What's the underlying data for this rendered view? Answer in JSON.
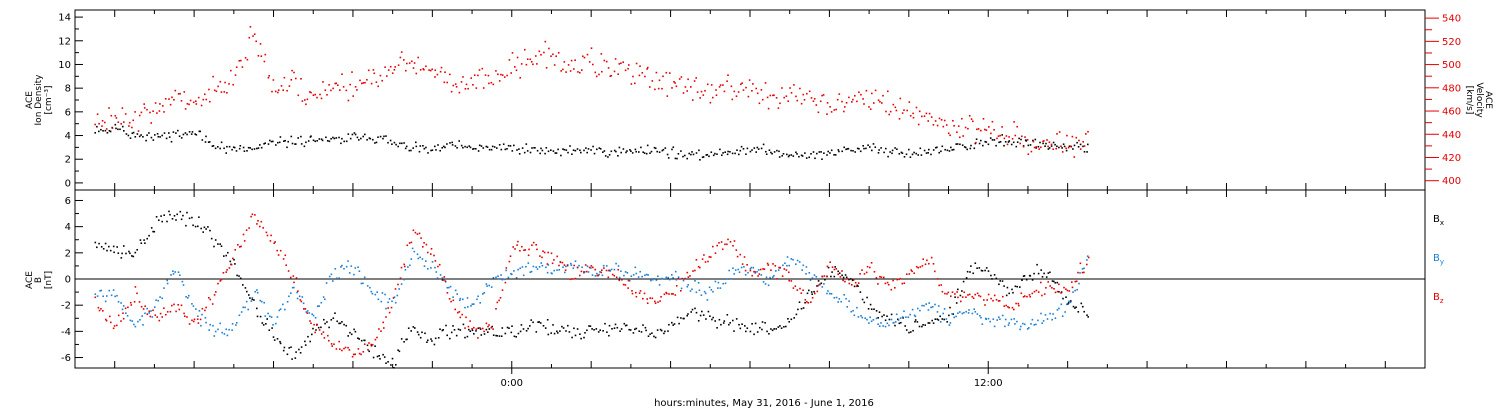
{
  "footer_label": "hours:minutes, May 31, 2016 - June  1, 2016",
  "colors": {
    "black": "#000000",
    "red": "#e60000",
    "blue": "#1a7fd6"
  },
  "chart_data": [
    {
      "type": "scatter",
      "panel": "top",
      "ylabel_lines": [
        "ACE",
        "Ion Density",
        "[cm⁻³]"
      ],
      "y2label_lines": [
        "ACE",
        "Velocity",
        "[km/s]"
      ],
      "ylim": [
        -0.6,
        14.6
      ],
      "y_ticks": [
        0,
        2,
        4,
        6,
        8,
        10,
        12,
        14
      ],
      "y2lim": [
        392,
        547
      ],
      "y2_ticks": [
        400,
        420,
        440,
        460,
        480,
        500,
        520,
        540
      ],
      "series": [
        {
          "axis": "left",
          "color": "#000000",
          "points": [
            [
              -10.5,
              4.5
            ],
            [
              -10.0,
              4.6
            ],
            [
              -9.5,
              4.2
            ],
            [
              -9.0,
              3.9
            ],
            [
              -8.5,
              4.1
            ],
            [
              -8.0,
              4.2
            ],
            [
              -7.5,
              3.3
            ],
            [
              -7.0,
              2.8
            ],
            [
              -6.5,
              2.9
            ],
            [
              -6.0,
              3.4
            ],
            [
              -5.5,
              3.6
            ],
            [
              -5.0,
              3.7
            ],
            [
              -4.5,
              3.6
            ],
            [
              -4.0,
              4.0
            ],
            [
              -3.5,
              3.9
            ],
            [
              -3.0,
              3.4
            ],
            [
              -2.5,
              3.0
            ],
            [
              -2.0,
              2.8
            ],
            [
              -1.5,
              3.2
            ],
            [
              -1.0,
              3.0
            ],
            [
              -0.5,
              2.9
            ],
            [
              0.0,
              3.0
            ],
            [
              0.5,
              2.8
            ],
            [
              1.0,
              2.7
            ],
            [
              1.5,
              2.8
            ],
            [
              2.0,
              2.9
            ],
            [
              2.5,
              2.6
            ],
            [
              3.0,
              2.7
            ],
            [
              3.5,
              2.9
            ],
            [
              4.0,
              2.6
            ],
            [
              4.5,
              2.3
            ],
            [
              5.0,
              2.5
            ],
            [
              5.5,
              2.8
            ],
            [
              6.0,
              3.0
            ],
            [
              6.5,
              2.7
            ],
            [
              7.0,
              2.5
            ],
            [
              7.5,
              2.4
            ],
            [
              8.0,
              2.6
            ],
            [
              8.5,
              2.9
            ],
            [
              9.0,
              3.0
            ],
            [
              9.5,
              2.8
            ],
            [
              10.0,
              2.6
            ],
            [
              10.5,
              2.7
            ],
            [
              11.0,
              2.9
            ],
            [
              11.5,
              3.2
            ],
            [
              12.0,
              3.6
            ],
            [
              12.5,
              3.6
            ],
            [
              13.0,
              3.4
            ],
            [
              13.5,
              3.1
            ],
            [
              14.0,
              3.0
            ],
            [
              14.5,
              2.9
            ]
          ]
        },
        {
          "axis": "right",
          "color": "#e60000",
          "points": [
            [
              -10.5,
              450
            ],
            [
              -10.0,
              455
            ],
            [
              -9.5,
              455
            ],
            [
              -9.0,
              462
            ],
            [
              -8.5,
              470
            ],
            [
              -8.0,
              470
            ],
            [
              -7.5,
              478
            ],
            [
              -7.0,
              495
            ],
            [
              -6.5,
              528
            ],
            [
              -6.0,
              480
            ],
            [
              -5.5,
              485
            ],
            [
              -5.0,
              472
            ],
            [
              -4.5,
              481
            ],
            [
              -4.0,
              483
            ],
            [
              -3.5,
              490
            ],
            [
              -3.0,
              498
            ],
            [
              -2.5,
              504
            ],
            [
              -2.0,
              496
            ],
            [
              -1.5,
              480
            ],
            [
              -1.0,
              485
            ],
            [
              -0.5,
              490
            ],
            [
              0.0,
              498
            ],
            [
              0.5,
              505
            ],
            [
              1.0,
              510
            ],
            [
              1.5,
              500
            ],
            [
              2.0,
              505
            ],
            [
              2.5,
              495
            ],
            [
              3.0,
              492
            ],
            [
              3.5,
              488
            ],
            [
              4.0,
              485
            ],
            [
              4.5,
              480
            ],
            [
              5.0,
              478
            ],
            [
              5.5,
              482
            ],
            [
              6.0,
              478
            ],
            [
              6.5,
              472
            ],
            [
              7.0,
              475
            ],
            [
              7.5,
              470
            ],
            [
              8.0,
              466
            ],
            [
              8.5,
              468
            ],
            [
              9.0,
              474
            ],
            [
              9.5,
              465
            ],
            [
              10.0,
              460
            ],
            [
              10.5,
              455
            ],
            [
              11.0,
              450
            ],
            [
              11.5,
              448
            ],
            [
              12.0,
              445
            ],
            [
              12.5,
              440
            ],
            [
              13.0,
              435
            ],
            [
              13.5,
              432
            ],
            [
              14.0,
              430
            ],
            [
              14.5,
              435
            ]
          ]
        }
      ]
    },
    {
      "type": "scatter",
      "panel": "bottom",
      "ylabel_lines": [
        "ACE",
        "B",
        "[nT]"
      ],
      "ylim": [
        -6.8,
        6.8
      ],
      "y_ticks": [
        -6,
        -4,
        -2,
        0,
        2,
        4,
        6
      ],
      "legend": [
        {
          "label": "Bx",
          "color": "#000000"
        },
        {
          "label": "By",
          "color": "#1a7fd6"
        },
        {
          "label": "Bz",
          "color": "#e60000"
        }
      ],
      "series": [
        {
          "name": "Bx",
          "color": "#000000",
          "points": [
            [
              -10.5,
              3.0
            ],
            [
              -10.0,
              2.2
            ],
            [
              -9.5,
              2.0
            ],
            [
              -9.0,
              4.2
            ],
            [
              -8.5,
              5.0
            ],
            [
              -8.0,
              4.6
            ],
            [
              -7.5,
              3.0
            ],
            [
              -7.0,
              1.0
            ],
            [
              -6.5,
              -2.0
            ],
            [
              -6.0,
              -4.5
            ],
            [
              -5.5,
              -5.8
            ],
            [
              -5.0,
              -4.0
            ],
            [
              -4.5,
              -3.0
            ],
            [
              -4.0,
              -4.2
            ],
            [
              -3.5,
              -5.5
            ],
            [
              -3.0,
              -6.2
            ],
            [
              -2.5,
              -3.5
            ],
            [
              -2.0,
              -4.5
            ],
            [
              -1.5,
              -3.8
            ],
            [
              -1.0,
              -3.9
            ],
            [
              -0.5,
              -4.2
            ],
            [
              0.0,
              -4.1
            ],
            [
              0.5,
              -3.6
            ],
            [
              1.0,
              -3.7
            ],
            [
              1.5,
              -4.0
            ],
            [
              2.0,
              -4.0
            ],
            [
              2.5,
              -3.8
            ],
            [
              3.0,
              -3.7
            ],
            [
              3.5,
              -4.0
            ],
            [
              4.0,
              -3.8
            ],
            [
              4.5,
              -2.5
            ],
            [
              5.0,
              -3.0
            ],
            [
              5.5,
              -3.2
            ],
            [
              6.0,
              -3.5
            ],
            [
              6.5,
              -3.6
            ],
            [
              7.0,
              -3.4
            ],
            [
              7.5,
              -1.0
            ],
            [
              8.0,
              0.8
            ],
            [
              8.5,
              0.2
            ],
            [
              9.0,
              -2.0
            ],
            [
              9.5,
              -3.0
            ],
            [
              10.0,
              -3.5
            ],
            [
              10.5,
              -3.3
            ],
            [
              11.0,
              -2.8
            ],
            [
              11.5,
              0.8
            ],
            [
              12.0,
              1.0
            ],
            [
              12.5,
              -1.0
            ],
            [
              13.0,
              0.5
            ],
            [
              13.5,
              0.8
            ],
            [
              14.0,
              -2.0
            ],
            [
              14.5,
              -2.5
            ]
          ]
        },
        {
          "name": "By",
          "color": "#1a7fd6",
          "points": [
            [
              -10.5,
              -1.0
            ],
            [
              -10.0,
              -1.5
            ],
            [
              -9.5,
              -3.5
            ],
            [
              -9.0,
              -2.0
            ],
            [
              -8.5,
              1.0
            ],
            [
              -8.0,
              -2.5
            ],
            [
              -7.5,
              -4.0
            ],
            [
              -7.0,
              -3.5
            ],
            [
              -6.5,
              -1.0
            ],
            [
              -6.0,
              -3.5
            ],
            [
              -5.5,
              -1.0
            ],
            [
              -5.0,
              -3.0
            ],
            [
              -4.5,
              0.5
            ],
            [
              -4.0,
              1.0
            ],
            [
              -3.5,
              -1.0
            ],
            [
              -3.0,
              -2.0
            ],
            [
              -2.5,
              2.0
            ],
            [
              -2.0,
              1.0
            ],
            [
              -1.5,
              -1.0
            ],
            [
              -1.0,
              -2.0
            ],
            [
              -0.5,
              0.0
            ],
            [
              0.0,
              0.5
            ],
            [
              0.5,
              1.0
            ],
            [
              1.0,
              0.8
            ],
            [
              1.5,
              1.2
            ],
            [
              2.0,
              0.5
            ],
            [
              2.5,
              0.8
            ],
            [
              3.0,
              0.5
            ],
            [
              3.5,
              0.0
            ],
            [
              4.0,
              0.2
            ],
            [
              4.5,
              -0.5
            ],
            [
              5.0,
              -1.0
            ],
            [
              5.5,
              0.5
            ],
            [
              6.0,
              1.0
            ],
            [
              6.5,
              0.0
            ],
            [
              7.0,
              1.5
            ],
            [
              7.5,
              0.5
            ],
            [
              8.0,
              -1.0
            ],
            [
              8.5,
              -2.0
            ],
            [
              9.0,
              -3.0
            ],
            [
              9.5,
              -3.5
            ],
            [
              10.0,
              -2.5
            ],
            [
              10.5,
              -2.0
            ],
            [
              11.0,
              -3.0
            ],
            [
              11.5,
              -2.5
            ],
            [
              12.0,
              -3.0
            ],
            [
              12.5,
              -3.2
            ],
            [
              13.0,
              -3.5
            ],
            [
              13.5,
              -3.0
            ],
            [
              14.0,
              -2.0
            ],
            [
              14.5,
              2.0
            ]
          ]
        },
        {
          "name": "Bz",
          "color": "#e60000",
          "points": [
            [
              -10.5,
              -2.0
            ],
            [
              -10.0,
              -3.5
            ],
            [
              -9.5,
              -1.0
            ],
            [
              -9.0,
              -3.0
            ],
            [
              -8.5,
              -2.0
            ],
            [
              -8.0,
              -3.5
            ],
            [
              -7.5,
              -1.0
            ],
            [
              -7.0,
              2.0
            ],
            [
              -6.5,
              5.0
            ],
            [
              -6.0,
              3.0
            ],
            [
              -5.5,
              0.0
            ],
            [
              -5.0,
              -3.5
            ],
            [
              -4.5,
              -5.0
            ],
            [
              -4.0,
              -5.5
            ],
            [
              -3.5,
              -5.0
            ],
            [
              -3.0,
              -1.5
            ],
            [
              -2.5,
              4.0
            ],
            [
              -2.0,
              2.0
            ],
            [
              -1.5,
              -2.0
            ],
            [
              -1.0,
              -4.0
            ],
            [
              -0.5,
              -3.5
            ],
            [
              0.0,
              2.5
            ],
            [
              0.5,
              2.5
            ],
            [
              1.0,
              1.5
            ],
            [
              1.5,
              0.5
            ],
            [
              2.0,
              0.8
            ],
            [
              2.5,
              0.5
            ],
            [
              3.0,
              -0.5
            ],
            [
              3.5,
              -1.5
            ],
            [
              4.0,
              -1.0
            ],
            [
              4.5,
              0.5
            ],
            [
              5.0,
              2.0
            ],
            [
              5.5,
              3.0
            ],
            [
              6.0,
              0.5
            ],
            [
              6.5,
              1.0
            ],
            [
              7.0,
              0.0
            ],
            [
              7.5,
              -1.5
            ],
            [
              8.0,
              1.0
            ],
            [
              8.5,
              -0.5
            ],
            [
              9.0,
              0.8
            ],
            [
              9.5,
              -0.5
            ],
            [
              10.0,
              0.5
            ],
            [
              10.5,
              1.5
            ],
            [
              11.0,
              -1.5
            ],
            [
              11.5,
              -1.0
            ],
            [
              12.0,
              -1.5
            ],
            [
              12.5,
              -2.0
            ],
            [
              13.0,
              -1.0
            ],
            [
              13.5,
              -0.5
            ],
            [
              14.0,
              -0.5
            ],
            [
              14.5,
              1.5
            ]
          ]
        }
      ]
    }
  ],
  "x_axis": {
    "tick_labels": [
      {
        "hour": 0,
        "label": "0:00"
      },
      {
        "hour": 12,
        "label": "12:00"
      }
    ]
  }
}
